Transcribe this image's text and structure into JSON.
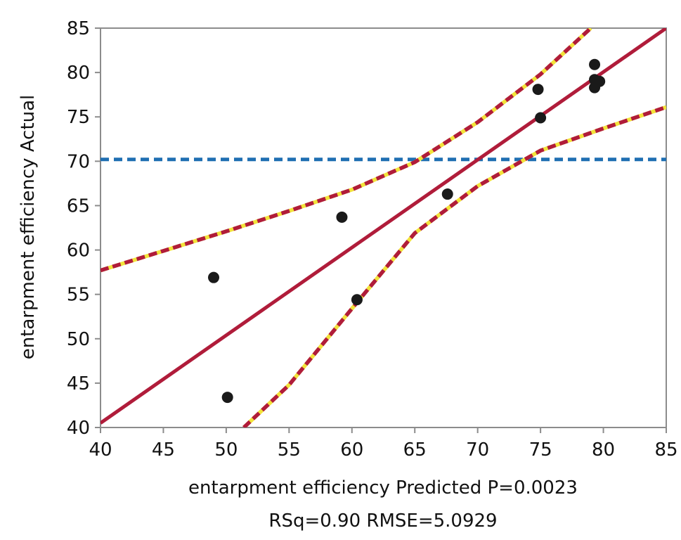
{
  "chart_data": {
    "type": "scatter",
    "title": "",
    "xlabel": "entarpment efficiency Predicted P=0.0023",
    "xlabel_line2": "RSq=0.90 RMSE=5.0929",
    "ylabel": "entarpment efficiency Actual",
    "xlim": [
      40,
      85
    ],
    "ylim": [
      40,
      85
    ],
    "xticks": [
      40,
      45,
      50,
      55,
      60,
      65,
      70,
      75,
      80,
      85
    ],
    "yticks": [
      40,
      45,
      50,
      55,
      60,
      65,
      70,
      75,
      80,
      85
    ],
    "grid": false,
    "points": [
      {
        "x": 49.0,
        "y": 56.9
      },
      {
        "x": 50.1,
        "y": 43.4
      },
      {
        "x": 59.2,
        "y": 63.7
      },
      {
        "x": 60.4,
        "y": 54.4
      },
      {
        "x": 67.6,
        "y": 66.3
      },
      {
        "x": 74.8,
        "y": 78.1
      },
      {
        "x": 75.0,
        "y": 74.9
      },
      {
        "x": 79.3,
        "y": 80.9
      },
      {
        "x": 79.3,
        "y": 79.2
      },
      {
        "x": 79.3,
        "y": 78.3
      },
      {
        "x": 79.7,
        "y": 79.0
      }
    ],
    "fit_line": {
      "x": [
        40,
        85
      ],
      "y": [
        40.5,
        85
      ]
    },
    "mean_line": {
      "y": 70.2
    },
    "confidence_upper": {
      "x": [
        40,
        45,
        50,
        55,
        60,
        65,
        70,
        75,
        79
      ],
      "y": [
        57.7,
        59.9,
        62.1,
        64.4,
        66.8,
        69.9,
        74.4,
        79.8,
        85
      ]
    },
    "confidence_lower": {
      "x": [
        51.4,
        55,
        60,
        65,
        70,
        75,
        80,
        85
      ],
      "y": [
        40,
        44.8,
        53.4,
        61.9,
        67.2,
        71.2,
        73.7,
        76.1
      ]
    },
    "colors": {
      "fit": "#b01c3a",
      "confidence": "#b01c3a",
      "confidence_highlight": "#f2e33a",
      "mean": "#1f6fb2",
      "points": "#1a1a1a",
      "axis": "#8c8c8c"
    }
  }
}
